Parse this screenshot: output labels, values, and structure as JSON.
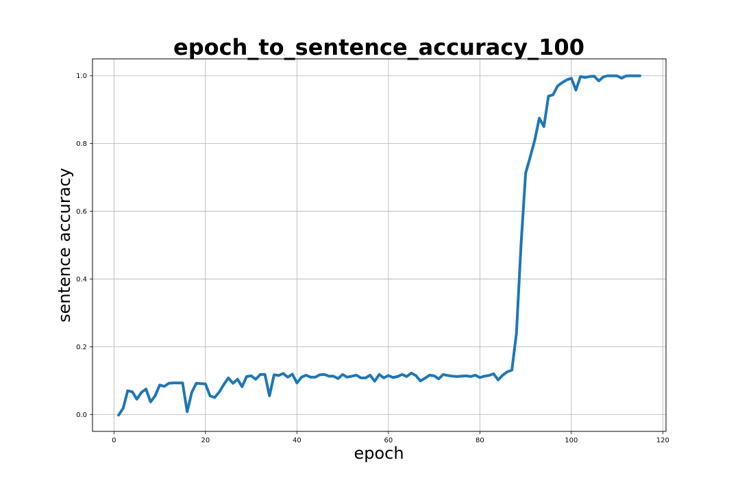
{
  "chart_data": {
    "type": "line",
    "title": "epoch_to_sentence_accuracy_100",
    "xlabel": "epoch",
    "ylabel": "sentence accuracy",
    "xlim": [
      -4.7,
      120.7
    ],
    "ylim": [
      -0.05,
      1.05
    ],
    "xticks": [
      0,
      20,
      40,
      60,
      80,
      100,
      120
    ],
    "yticks": [
      0.0,
      0.2,
      0.4,
      0.6,
      0.8,
      1.0
    ],
    "xtick_labels": [
      "0",
      "20",
      "40",
      "60",
      "80",
      "100",
      "120"
    ],
    "ytick_labels": [
      "0.0",
      "0.2",
      "0.4",
      "0.6",
      "0.8",
      "1.0"
    ],
    "grid": true,
    "legend": "none",
    "series": [
      {
        "color": "#1f77b4",
        "x": [
          1,
          2,
          3,
          4,
          5,
          6,
          7,
          8,
          9,
          10,
          11,
          12,
          13,
          14,
          15,
          16,
          17,
          18,
          19,
          20,
          21,
          22,
          23,
          24,
          25,
          26,
          27,
          28,
          29,
          30,
          31,
          32,
          33,
          34,
          35,
          36,
          37,
          38,
          39,
          40,
          41,
          42,
          43,
          44,
          45,
          46,
          47,
          48,
          49,
          50,
          51,
          52,
          53,
          54,
          55,
          56,
          57,
          58,
          59,
          60,
          61,
          62,
          63,
          64,
          65,
          66,
          67,
          68,
          69,
          70,
          71,
          72,
          73,
          74,
          75,
          76,
          77,
          78,
          79,
          80,
          81,
          82,
          83,
          84,
          85,
          86,
          87,
          88,
          89,
          90,
          91,
          92,
          93,
          94,
          95,
          96,
          97,
          98,
          99,
          100,
          101,
          102,
          103,
          104,
          105,
          106,
          107,
          108,
          109,
          110,
          111,
          112,
          113,
          114,
          115
        ],
        "values": [
          -0.002,
          0.018,
          0.07,
          0.067,
          0.045,
          0.065,
          0.075,
          0.037,
          0.055,
          0.087,
          0.083,
          0.092,
          0.093,
          0.093,
          0.093,
          0.008,
          0.065,
          0.092,
          0.091,
          0.09,
          0.055,
          0.05,
          0.066,
          0.088,
          0.108,
          0.092,
          0.104,
          0.082,
          0.112,
          0.114,
          0.104,
          0.118,
          0.118,
          0.055,
          0.117,
          0.115,
          0.121,
          0.11,
          0.119,
          0.093,
          0.11,
          0.116,
          0.11,
          0.11,
          0.117,
          0.118,
          0.113,
          0.113,
          0.106,
          0.118,
          0.11,
          0.113,
          0.116,
          0.108,
          0.108,
          0.116,
          0.098,
          0.118,
          0.108,
          0.115,
          0.109,
          0.112,
          0.118,
          0.112,
          0.122,
          0.115,
          0.099,
          0.107,
          0.116,
          0.114,
          0.105,
          0.118,
          0.115,
          0.113,
          0.112,
          0.113,
          0.114,
          0.112,
          0.116,
          0.109,
          0.113,
          0.115,
          0.12,
          0.102,
          0.116,
          0.126,
          0.131,
          0.24,
          0.5,
          0.712,
          0.76,
          0.81,
          0.875,
          0.85,
          0.94,
          0.944,
          0.97,
          0.98,
          0.988,
          0.993,
          0.958,
          0.998,
          0.995,
          0.998,
          0.999,
          0.985,
          0.997,
          1.0,
          1.0,
          1.0,
          0.993,
          1.0,
          1.0,
          1.0,
          1.0
        ]
      }
    ]
  }
}
